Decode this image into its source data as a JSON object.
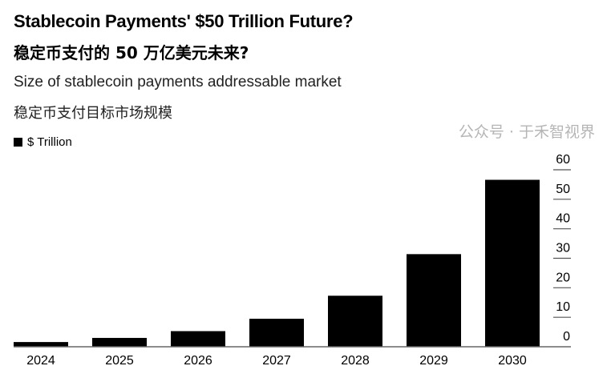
{
  "title": "Stablecoin Payments' $50 Trillion Future?",
  "title_zh": "稳定币支付的 50 万亿美元未来?",
  "subtitle": "Size of stablecoin payments addressable market",
  "subtitle_zh": "稳定币支付目标市场规模",
  "watermark": "公众号 · 于禾智视界",
  "chart_data": {
    "type": "bar",
    "categories": [
      "2024",
      "2025",
      "2026",
      "2027",
      "2028",
      "2029",
      "2030"
    ],
    "series": [
      {
        "name": "$ Trillion",
        "values": [
          1.6,
          3.0,
          5.3,
          9.5,
          17.3,
          31.4,
          56.6
        ],
        "color": "#000000"
      }
    ],
    "yticks": [
      "0",
      "10",
      "20",
      "30",
      "40",
      "50",
      "60"
    ],
    "ylim": [
      0,
      60
    ],
    "y_axis_position": "right",
    "legend": "top-left",
    "grid": false
  }
}
